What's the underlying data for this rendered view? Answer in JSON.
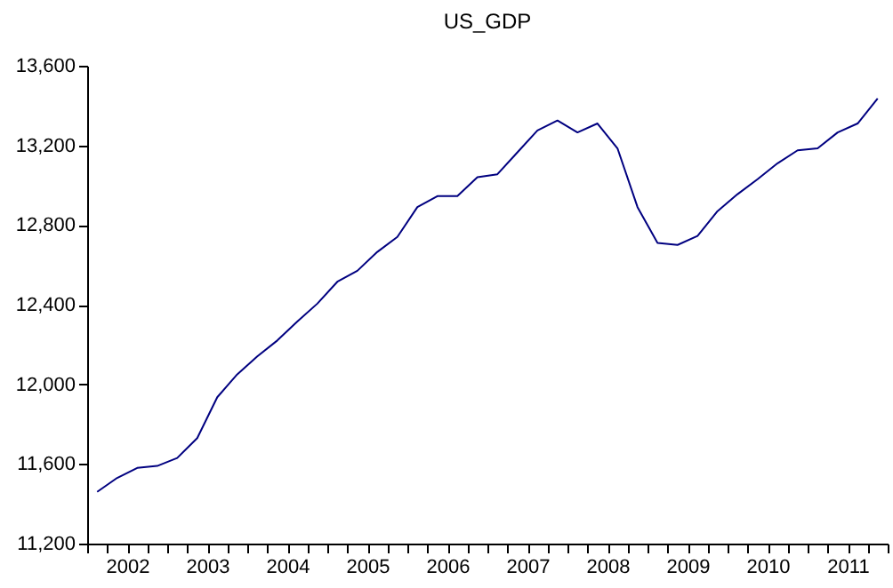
{
  "chart_data": {
    "type": "line",
    "title": "US_GDP",
    "x": [
      2002.125,
      2002.375,
      2002.625,
      2002.875,
      2003.125,
      2003.375,
      2003.625,
      2003.875,
      2004.125,
      2004.375,
      2004.625,
      2004.875,
      2005.125,
      2005.375,
      2005.625,
      2005.875,
      2006.125,
      2006.375,
      2006.625,
      2006.875,
      2007.125,
      2007.375,
      2007.625,
      2007.875,
      2008.125,
      2008.375,
      2008.625,
      2008.875,
      2009.125,
      2009.375,
      2009.625,
      2009.875,
      2010.125,
      2010.375,
      2010.625,
      2010.875,
      2011.125,
      2011.375,
      2011.625,
      2011.875
    ],
    "series": [
      {
        "color": "#000080",
        "values": [
          11460,
          11530,
          11580,
          11590,
          11630,
          11730,
          11935,
          12050,
          12140,
          12220,
          12315,
          12405,
          12515,
          12570,
          12665,
          12740,
          12890,
          12945,
          12945,
          13040,
          13055,
          13165,
          13275,
          13325,
          13265,
          13310,
          13185,
          12890,
          12710,
          12700,
          12745,
          12870,
          12955,
          13030,
          13110,
          13175,
          13185,
          13265,
          13310,
          13435
        ]
      }
    ],
    "xlim": [
      2002,
      2012
    ],
    "xticks": [
      {
        "value": 2002,
        "label": null
      },
      {
        "value": 2002.25,
        "label": null
      },
      {
        "value": 2002.5,
        "label": "2002"
      },
      {
        "value": 2002.75,
        "label": null
      },
      {
        "value": 2003,
        "label": null
      },
      {
        "value": 2003.25,
        "label": null
      },
      {
        "value": 2003.5,
        "label": "2003"
      },
      {
        "value": 2003.75,
        "label": null
      },
      {
        "value": 2004,
        "label": null
      },
      {
        "value": 2004.25,
        "label": null
      },
      {
        "value": 2004.5,
        "label": "2004"
      },
      {
        "value": 2004.75,
        "label": null
      },
      {
        "value": 2005,
        "label": null
      },
      {
        "value": 2005.25,
        "label": null
      },
      {
        "value": 2005.5,
        "label": "2005"
      },
      {
        "value": 2005.75,
        "label": null
      },
      {
        "value": 2006,
        "label": null
      },
      {
        "value": 2006.25,
        "label": null
      },
      {
        "value": 2006.5,
        "label": "2006"
      },
      {
        "value": 2006.75,
        "label": null
      },
      {
        "value": 2007,
        "label": null
      },
      {
        "value": 2007.25,
        "label": null
      },
      {
        "value": 2007.5,
        "label": "2007"
      },
      {
        "value": 2007.75,
        "label": null
      },
      {
        "value": 2008,
        "label": null
      },
      {
        "value": 2008.25,
        "label": null
      },
      {
        "value": 2008.5,
        "label": "2008"
      },
      {
        "value": 2008.75,
        "label": null
      },
      {
        "value": 2009,
        "label": null
      },
      {
        "value": 2009.25,
        "label": null
      },
      {
        "value": 2009.5,
        "label": "2009"
      },
      {
        "value": 2009.75,
        "label": null
      },
      {
        "value": 2010,
        "label": null
      },
      {
        "value": 2010.25,
        "label": null
      },
      {
        "value": 2010.5,
        "label": "2010"
      },
      {
        "value": 2010.75,
        "label": null
      },
      {
        "value": 2011,
        "label": null
      },
      {
        "value": 2011.25,
        "label": null
      },
      {
        "value": 2011.5,
        "label": "2011"
      },
      {
        "value": 2011.75,
        "label": null
      },
      {
        "value": 2012,
        "label": null
      }
    ],
    "ylim": [
      11200,
      13600
    ],
    "yticks": [
      {
        "value": 11200,
        "label": "11,200"
      },
      {
        "value": 11600,
        "label": "11,600"
      },
      {
        "value": 12000,
        "label": "12,000"
      },
      {
        "value": 12400,
        "label": "12,400"
      },
      {
        "value": 12800,
        "label": "12,800"
      },
      {
        "value": 13200,
        "label": "13,200"
      },
      {
        "value": 13600,
        "label": "13,600"
      }
    ],
    "grid": false,
    "legend": false
  }
}
